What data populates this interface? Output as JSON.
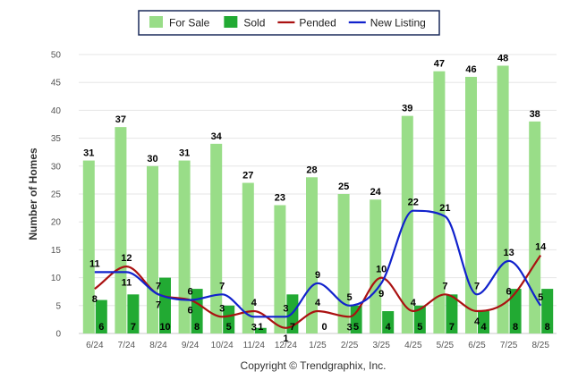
{
  "chart_data": {
    "type": "bar",
    "categories": [
      "6/24",
      "7/24",
      "8/24",
      "9/24",
      "10/24",
      "11/24",
      "12/24",
      "1/25",
      "2/25",
      "3/25",
      "4/25",
      "5/25",
      "6/25",
      "7/25",
      "8/25"
    ],
    "series": [
      {
        "name": "For Sale",
        "type": "bar",
        "color": "#99dd88",
        "values": [
          31,
          37,
          30,
          31,
          34,
          27,
          23,
          28,
          25,
          24,
          39,
          47,
          46,
          48,
          38
        ]
      },
      {
        "name": "Sold",
        "type": "bar",
        "color": "#22aa33",
        "values": [
          6,
          7,
          10,
          8,
          5,
          1,
          7,
          0,
          5,
          4,
          5,
          7,
          4,
          8,
          8
        ]
      },
      {
        "name": "Pended",
        "type": "line",
        "color": "#aa1111",
        "values": [
          8,
          12,
          7,
          6,
          3,
          4,
          1,
          4,
          3,
          10,
          4,
          7,
          4,
          6,
          14
        ]
      },
      {
        "name": "New Listing",
        "type": "line",
        "color": "#1122cc",
        "values": [
          11,
          11,
          7,
          6,
          7,
          3,
          3,
          9,
          5,
          9,
          22,
          21,
          7,
          13,
          5
        ]
      }
    ],
    "ylabel": "Number of Homes",
    "xlabel": "",
    "ylim": [
      0,
      50
    ],
    "yticks": [
      0,
      5,
      10,
      15,
      20,
      25,
      30,
      35,
      40,
      45,
      50
    ],
    "grid": true,
    "legend_position": "top-center"
  },
  "footer": "Copyright © Trendgraphix, Inc."
}
